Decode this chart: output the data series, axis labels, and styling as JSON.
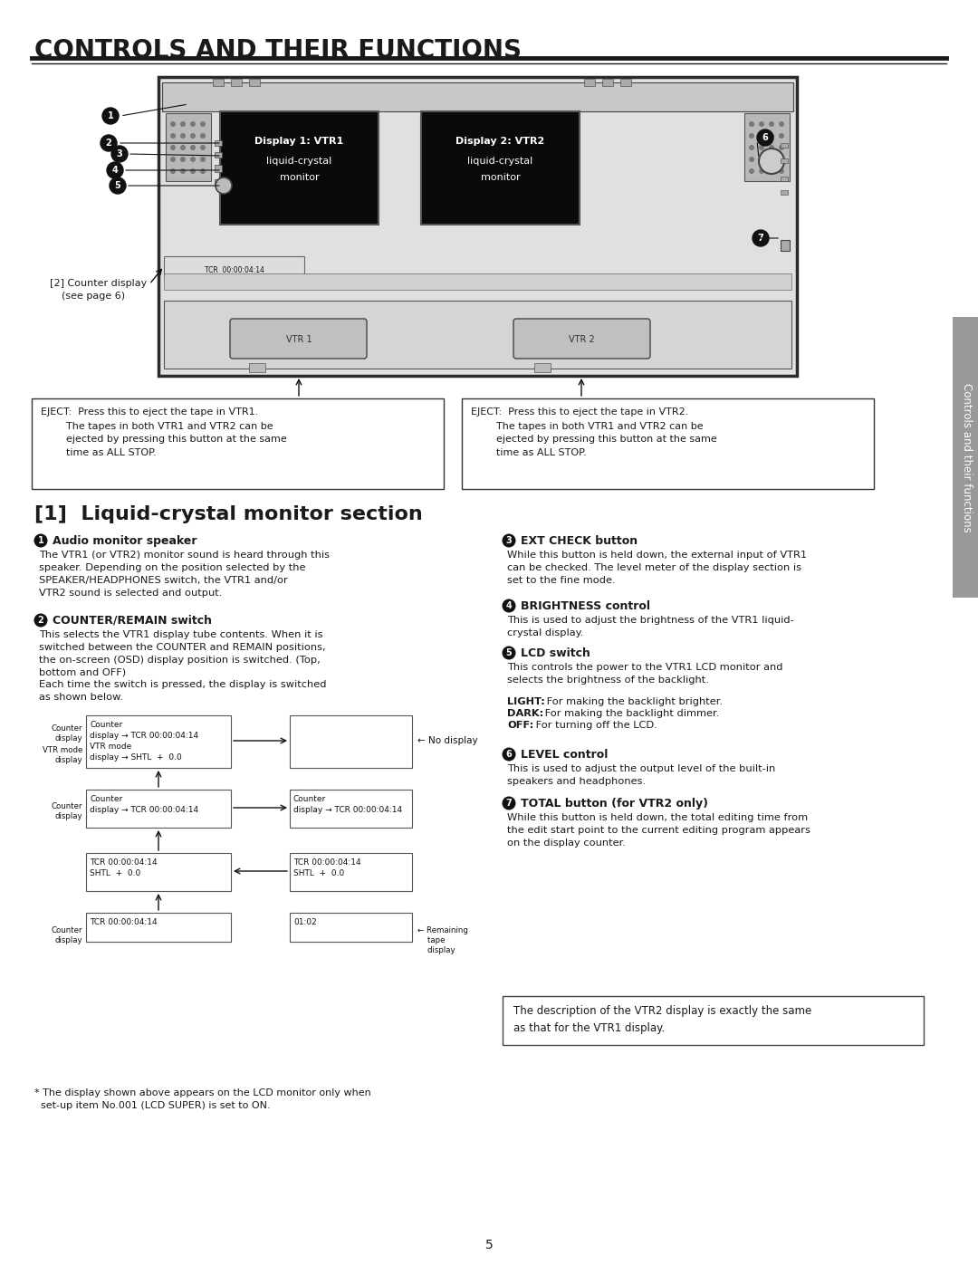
{
  "title": "CONTROLS AND THEIR FUNCTIONS",
  "section_title": "[1]  Liquid-crystal monitor section",
  "bg_color": "#ffffff",
  "text_color": "#1a1a1a",
  "sidebar_text": "Controls and their functions",
  "eject_vtr1_title": "EJECT:  Press this to eject the tape in VTR1.",
  "eject_vtr1_body": "        The tapes in both VTR1 and VTR2 can be\n        ejected by pressing this button at the same\n        time as ALL STOP.",
  "eject_vtr2_title": "EJECT:  Press this to eject the tape in VTR2.",
  "eject_vtr2_body": "        The tapes in both VTR1 and VTR2 can be\n        ejected by pressing this button at the same\n        time as ALL STOP.",
  "note_box": "The description of the VTR2 display is exactly the same\nas that for the VTR1 display.",
  "footnote": "* The display shown above appears on the LCD monitor only when\n  set-up item No.001 (LCD SUPER) is set to ON.",
  "page_number": "5"
}
